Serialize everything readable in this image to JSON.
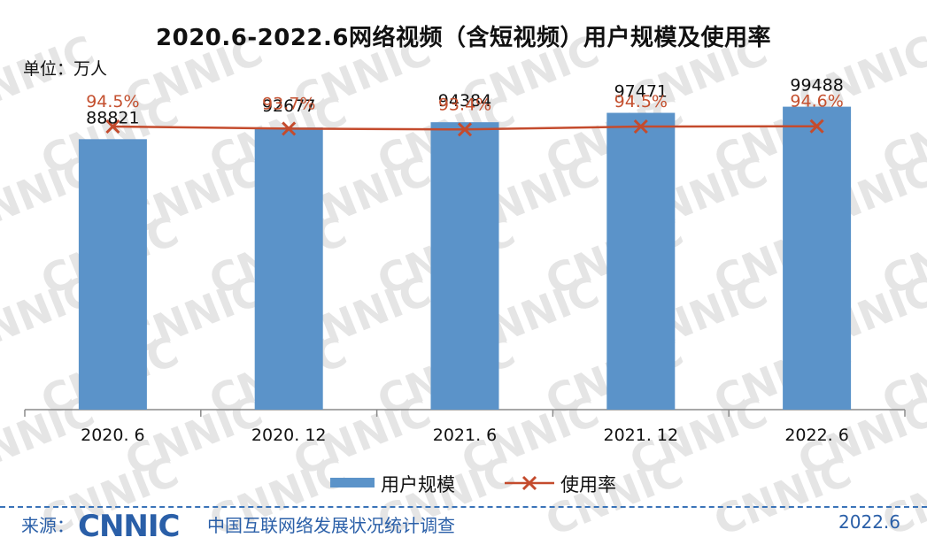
{
  "title": "2020.6-2022.6网络视频（含短视频）用户规模及使用率",
  "unit_label": "单位：万人",
  "legend": {
    "bar_label": "用户规模",
    "line_label": "使用率"
  },
  "footer": {
    "source_label": "来源：",
    "logo_text": "CNNIC",
    "org_name": "中国互联网络发展状况统计调查",
    "date": "2022.6"
  },
  "watermark_text": "CNNIC",
  "colors": {
    "bar": "#5b93c9",
    "line": "#c44b2d",
    "line_label": "#c4502f",
    "footer_blue": "#2a5fa8"
  },
  "chart_data": {
    "type": "bar",
    "title": "2020.6-2022.6网络视频（含短视频）用户规模及使用率",
    "categories": [
      "2020. 6",
      "2020. 12",
      "2021. 6",
      "2021. 12",
      "2022. 6"
    ],
    "series": [
      {
        "name": "用户规模",
        "type": "bar",
        "values": [
          88821,
          92677,
          94384,
          97471,
          99488
        ],
        "labels": [
          "88821",
          "92677",
          "94384",
          "97471",
          "99488"
        ]
      },
      {
        "name": "使用率",
        "type": "line",
        "values": [
          94.5,
          93.7,
          93.4,
          94.5,
          94.6
        ],
        "labels": [
          "94.5%",
          "93.7%",
          "93.4%",
          "94.5%",
          "94.6%"
        ]
      }
    ],
    "ylim": [
      0,
      120000
    ],
    "grid": false,
    "legend_position": "bottom"
  }
}
